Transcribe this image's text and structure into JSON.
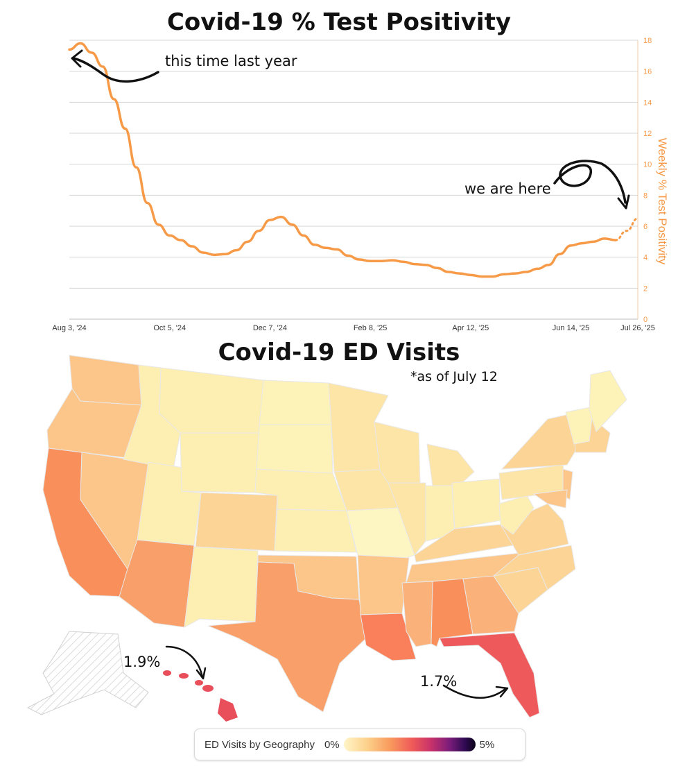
{
  "charts": {
    "line_title": "Covid-19 % Test Positivity",
    "map_title": "Covid-19 ED Visits",
    "map_subtitle": "*as of July 12"
  },
  "annotations": {
    "last_year": "this time last year",
    "we_are_here": "we are here",
    "hawaii": "1.9%",
    "florida": "1.7%"
  },
  "legend": {
    "label": "ED Visits by Geography",
    "min": "0%",
    "max": "5%"
  },
  "chart_data": [
    {
      "type": "line",
      "title": "Covid-19 % Test Positivity",
      "ylabel": "Weekly % Test Positivity",
      "y_axis_side": "right",
      "ylim": [
        0,
        18
      ],
      "y_ticks": [
        0,
        2,
        4,
        6,
        8,
        10,
        12,
        14,
        16,
        18
      ],
      "x_tick_labels": [
        "Aug 3, '24",
        "Oct 5, '24",
        "Dec 7, '24",
        "Feb 8, '25",
        "Apr 12, '25",
        "Jun 14, '25",
        "Jul 26, '25"
      ],
      "grid": true,
      "color": "#f79a48",
      "series": [
        {
          "x": [
            "2024-08-03",
            "2024-08-10",
            "2024-08-17",
            "2024-08-24",
            "2024-08-31",
            "2024-09-07",
            "2024-09-14",
            "2024-09-21",
            "2024-09-28",
            "2024-10-05",
            "2024-10-12",
            "2024-10-19",
            "2024-10-26",
            "2024-11-02",
            "2024-11-09",
            "2024-11-16",
            "2024-11-23",
            "2024-11-30",
            "2024-12-07",
            "2024-12-14",
            "2024-12-21",
            "2024-12-28",
            "2025-01-04",
            "2025-01-11",
            "2025-01-18",
            "2025-01-25",
            "2025-02-01",
            "2025-02-08",
            "2025-02-15",
            "2025-02-22",
            "2025-03-01",
            "2025-03-08",
            "2025-03-15",
            "2025-03-22",
            "2025-03-29",
            "2025-04-05",
            "2025-04-12",
            "2025-04-19",
            "2025-04-26",
            "2025-05-03",
            "2025-05-10",
            "2025-05-17",
            "2025-05-24",
            "2025-05-31",
            "2025-06-07",
            "2025-06-14",
            "2025-06-21",
            "2025-06-28",
            "2025-07-05",
            "2025-07-12"
          ],
          "y": [
            17.4,
            17.8,
            17.2,
            16.3,
            14.2,
            12.3,
            9.8,
            7.5,
            6.1,
            5.4,
            5.1,
            4.7,
            4.3,
            4.15,
            4.2,
            4.45,
            5.0,
            5.7,
            6.4,
            6.6,
            6.1,
            5.4,
            4.8,
            4.6,
            4.5,
            4.1,
            3.85,
            3.75,
            3.75,
            3.8,
            3.7,
            3.55,
            3.5,
            3.3,
            3.05,
            2.95,
            2.85,
            2.75,
            2.75,
            2.9,
            2.95,
            3.05,
            3.25,
            3.5,
            4.2,
            4.75,
            4.9,
            5.0,
            5.2,
            5.1
          ],
          "style": "solid"
        },
        {
          "x": [
            "2025-07-12",
            "2025-07-19",
            "2025-07-26"
          ],
          "y": [
            5.1,
            5.7,
            6.5
          ],
          "style": "dotted"
        }
      ]
    },
    {
      "type": "choropleth",
      "title": "Covid-19 ED Visits",
      "subtitle": "*as of July 12",
      "legend": "ED Visits by Geography",
      "scale_range": [
        "0%",
        "5%"
      ],
      "labeled_values": [
        {
          "state": "Hawaii",
          "value": "1.9%"
        },
        {
          "state": "Florida",
          "value": "1.7%"
        }
      ]
    }
  ]
}
